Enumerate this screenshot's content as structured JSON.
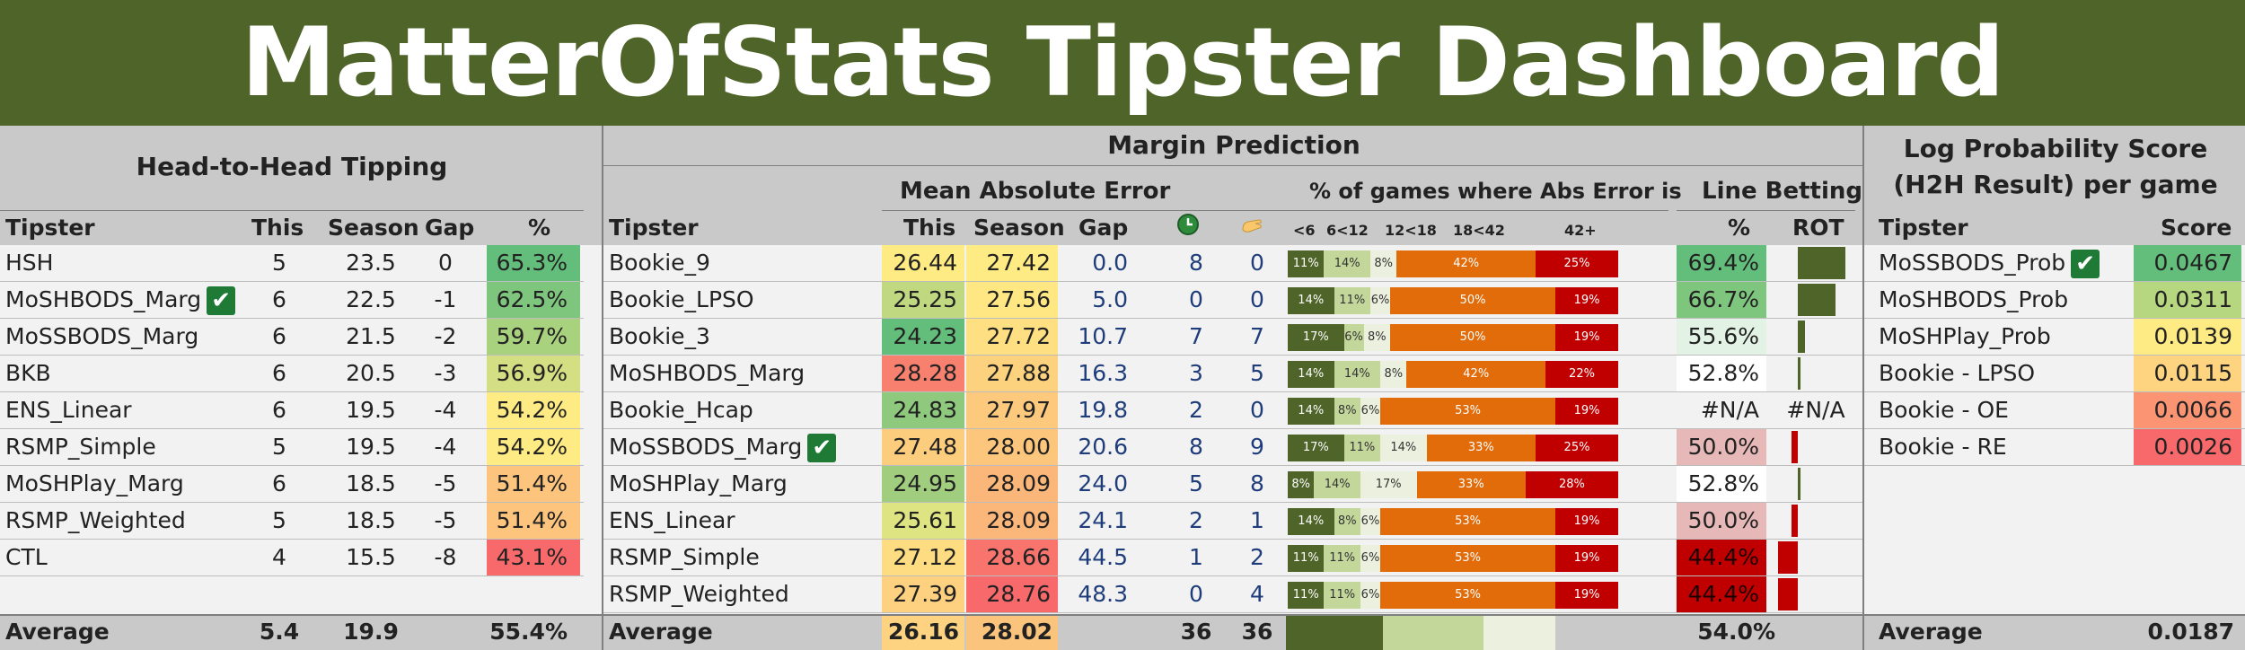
{
  "title": "MatterOfStats Tipster Dashboard",
  "colors": {
    "banner": "#4e6428",
    "dark_green_bar": "#4e6428",
    "dark_red_bar": "#c00000"
  },
  "h2h": {
    "section_title": "Head-to-Head Tipping",
    "headers": {
      "tipster": "Tipster",
      "this": "This",
      "season": "Season",
      "gap": "Gap",
      "pct": "%"
    },
    "rows": [
      {
        "tipster": "HSH",
        "this": "5",
        "season": "23.5",
        "gap": "0",
        "pct": "65.3%",
        "pct_color": "#63be7b",
        "check": false
      },
      {
        "tipster": "MoSHBODS_Marg",
        "this": "6",
        "season": "22.5",
        "gap": "-1",
        "pct": "62.5%",
        "pct_color": "#7ec57d",
        "check": true
      },
      {
        "tipster": "MoSSBODS_Marg",
        "this": "6",
        "season": "21.5",
        "gap": "-2",
        "pct": "59.7%",
        "pct_color": "#a9d27f",
        "check": false
      },
      {
        "tipster": "BKB",
        "this": "6",
        "season": "20.5",
        "gap": "-3",
        "pct": "56.9%",
        "pct_color": "#d3df82",
        "check": false
      },
      {
        "tipster": "ENS_Linear",
        "this": "6",
        "season": "19.5",
        "gap": "-4",
        "pct": "54.2%",
        "pct_color": "#ffeb84",
        "check": false
      },
      {
        "tipster": "RSMP_Simple",
        "this": "5",
        "season": "19.5",
        "gap": "-4",
        "pct": "54.2%",
        "pct_color": "#ffeb84",
        "check": false
      },
      {
        "tipster": "MoSHPlay_Marg",
        "this": "6",
        "season": "18.5",
        "gap": "-5",
        "pct": "51.4%",
        "pct_color": "#fdc47d",
        "check": false
      },
      {
        "tipster": "RSMP_Weighted",
        "this": "5",
        "season": "18.5",
        "gap": "-5",
        "pct": "51.4%",
        "pct_color": "#fdc47d",
        "check": false
      },
      {
        "tipster": "CTL",
        "this": "4",
        "season": "15.5",
        "gap": "-8",
        "pct": "43.1%",
        "pct_color": "#f8696b",
        "check": false
      }
    ],
    "average": {
      "label": "Average",
      "this": "5.4",
      "season": "19.9",
      "pct": "55.4%"
    }
  },
  "margin": {
    "section_title": "Margin Prediction",
    "mae_title": "Mean Absolute Error",
    "abs_title": "% of games where Abs Error is",
    "line_title": "Line Betting",
    "headers": {
      "tipster": "Tipster",
      "this": "This",
      "season": "Season",
      "gap": "Gap",
      "icon1": "clock-icon",
      "icon2": "hand-icon",
      "pct": "%",
      "rot": "ROT"
    },
    "buckets": [
      "<6",
      "6<12",
      "12<18",
      "18<42",
      "42+"
    ],
    "bucket_colors": [
      "#4e6428",
      "#c4d79b",
      "#ebf1de",
      "#e26b0a",
      "#c00000"
    ],
    "rows": [
      {
        "tipster": "Bookie_9",
        "this": "26.44",
        "this_color": "#ffeb84",
        "season": "27.42",
        "season_color": "#ffeb84",
        "gap": "0.0",
        "n1": "8",
        "n2": "0",
        "dist": [
          11,
          14,
          8,
          42,
          25
        ],
        "labels": [
          "11%",
          "14%",
          "8%",
          "42%",
          "25%"
        ],
        "line_pct": "69.4%",
        "line_color": "#63be7b",
        "rot": 0.75,
        "rot_color": "#4e6428",
        "check": false
      },
      {
        "tipster": "Bookie_LPSO",
        "this": "25.25",
        "this_color": "#c0d980",
        "season": "27.56",
        "season_color": "#ffe883",
        "gap": "5.0",
        "n1": "0",
        "n2": "0",
        "dist": [
          14,
          11,
          6,
          50,
          19
        ],
        "labels": [
          "14%",
          "11%",
          "6%",
          "50%",
          "19%"
        ],
        "line_pct": "66.7%",
        "line_color": "#7ec57d",
        "rot": 0.6,
        "rot_color": "#4e6428",
        "check": false
      },
      {
        "tipster": "Bookie_3",
        "this": "24.23",
        "this_color": "#63be7b",
        "season": "27.72",
        "season_color": "#fee082",
        "gap": "10.7",
        "n1": "7",
        "n2": "7",
        "dist": [
          17,
          6,
          8,
          50,
          19
        ],
        "labels": [
          "17%",
          "6%",
          "8%",
          "50%",
          "19%"
        ],
        "line_pct": "55.6%",
        "line_color": "#e2f3e5",
        "rot": 0.12,
        "rot_color": "#4e6428",
        "check": false
      },
      {
        "tipster": "MoSHBODS_Marg",
        "this": "28.28",
        "this_color": "#f8806e",
        "season": "27.88",
        "season_color": "#fdd27f",
        "gap": "16.3",
        "n1": "3",
        "n2": "5",
        "dist": [
          14,
          14,
          8,
          42,
          22
        ],
        "labels": [
          "14%",
          "14%",
          "8%",
          "42%",
          "22%"
        ],
        "line_pct": "52.8%",
        "line_color": "#ffffff",
        "rot": 0.02,
        "rot_color": "#4e6428",
        "check": false
      },
      {
        "tipster": "Bookie_Hcap",
        "this": "24.83",
        "this_color": "#8ec97d",
        "season": "27.97",
        "season_color": "#fcc97d",
        "gap": "19.8",
        "n1": "2",
        "n2": "0",
        "dist": [
          14,
          8,
          6,
          53,
          19
        ],
        "labels": [
          "14%",
          "8%",
          "6%",
          "53%",
          "19%"
        ],
        "line_pct": "#N/A",
        "line_color": "#f2f2f2",
        "rot_label": "#N/A",
        "rot": 0,
        "rot_color": "#4e6428",
        "check": false
      },
      {
        "tipster": "MoSSBODS_Marg",
        "this": "27.48",
        "this_color": "#fdcd7e",
        "season": "28.00",
        "season_color": "#fcc67c",
        "gap": "20.6",
        "n1": "8",
        "n2": "9",
        "dist": [
          17,
          11,
          14,
          33,
          25
        ],
        "labels": [
          "17%",
          "11%",
          "14%",
          "33%",
          "25%"
        ],
        "line_pct": "50.0%",
        "line_color": "#e6b8b7",
        "rot": 0.1,
        "rot_color": "#c00000",
        "check": true
      },
      {
        "tipster": "MoSHPlay_Marg",
        "this": "24.95",
        "this_color": "#a0ce7e",
        "season": "28.09",
        "season_color": "#fbb67a",
        "gap": "24.0",
        "n1": "5",
        "n2": "8",
        "dist": [
          8,
          14,
          17,
          33,
          28
        ],
        "labels": [
          "8%",
          "14%",
          "17%",
          "33%",
          "28%"
        ],
        "line_pct": "52.8%",
        "line_color": "#ffffff",
        "rot": 0.02,
        "rot_color": "#4e6428",
        "check": false
      },
      {
        "tipster": "ENS_Linear",
        "this": "25.61",
        "this_color": "#dfe482",
        "season": "28.09",
        "season_color": "#fbb67a",
        "gap": "24.1",
        "n1": "2",
        "n2": "1",
        "dist": [
          14,
          8,
          6,
          53,
          19
        ],
        "labels": [
          "14%",
          "8%",
          "6%",
          "53%",
          "19%"
        ],
        "line_pct": "50.0%",
        "line_color": "#e6b8b7",
        "rot": 0.1,
        "rot_color": "#c00000",
        "check": false
      },
      {
        "tipster": "RSMP_Simple",
        "this": "27.12",
        "this_color": "#fedc81",
        "season": "28.66",
        "season_color": "#f8746d",
        "gap": "44.5",
        "n1": "1",
        "n2": "2",
        "dist": [
          11,
          11,
          6,
          53,
          19
        ],
        "labels": [
          "11%",
          "11%",
          "6%",
          "53%",
          "19%"
        ],
        "line_pct": "44.4%",
        "line_color": "#c00000",
        "rot": 0.32,
        "rot_color": "#c00000",
        "check": false
      },
      {
        "tipster": "RSMP_Weighted",
        "this": "27.39",
        "this_color": "#fdd17f",
        "season": "28.76",
        "season_color": "#f8696b",
        "gap": "48.3",
        "n1": "0",
        "n2": "4",
        "dist": [
          11,
          11,
          6,
          53,
          19
        ],
        "labels": [
          "11%",
          "11%",
          "6%",
          "53%",
          "19%"
        ],
        "line_pct": "44.4%",
        "line_color": "#c00000",
        "rot": 0.32,
        "rot_color": "#c00000",
        "check": false
      }
    ],
    "average": {
      "label": "Average",
      "this": "26.16",
      "season": "28.02",
      "n1": "36",
      "n2": "36",
      "line_pct": "54.0%"
    }
  },
  "logprob": {
    "title_line1": "Log Probability Score",
    "title_line2": "(H2H Result) per game",
    "headers": {
      "tipster": "Tipster",
      "score": "Score"
    },
    "rows": [
      {
        "tipster": "MoSSBODS_Prob",
        "score": "0.0467",
        "color": "#63be7b",
        "check": true
      },
      {
        "tipster": "MoSHBODS_Prob",
        "score": "0.0311",
        "color": "#b6d680",
        "check": false
      },
      {
        "tipster": "MoSHPlay_Prob",
        "score": "0.0139",
        "color": "#ffeb84",
        "check": false
      },
      {
        "tipster": "Bookie - LPSO",
        "score": "0.0115",
        "color": "#fed481",
        "check": false
      },
      {
        "tipster": "Bookie - OE",
        "score": "0.0066",
        "color": "#fa9473",
        "check": false
      },
      {
        "tipster": "Bookie - RE",
        "score": "0.0026",
        "color": "#f8696b",
        "check": false
      }
    ],
    "average": {
      "label": "Average",
      "score": "0.0187"
    }
  }
}
